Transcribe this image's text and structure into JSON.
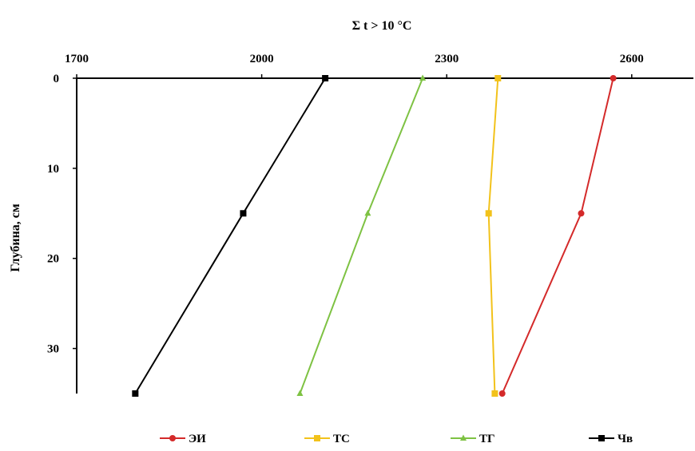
{
  "chart_data": {
    "type": "line",
    "title": "Σ t > 10 °C",
    "xlabel": "Σ t > 10 °C",
    "ylabel": "Глубина, см",
    "x_axis_position": "top",
    "y_axis_inverted": true,
    "xlim": [
      1700,
      2700
    ],
    "ylim": [
      0,
      35
    ],
    "x_ticks": [
      1700,
      2000,
      2300,
      2600
    ],
    "y_ticks": [
      0,
      10,
      20,
      30
    ],
    "grid": false,
    "legend_position": "bottom",
    "depths": [
      0,
      15,
      35
    ],
    "series": [
      {
        "name": "ЭИ",
        "color": "#d42a2a",
        "marker": "circle",
        "points": [
          [
            2570,
            0
          ],
          [
            2518,
            15
          ],
          [
            2390,
            35
          ]
        ]
      },
      {
        "name": "ТС",
        "color": "#f2c21b",
        "marker": "square",
        "points": [
          [
            2383,
            0
          ],
          [
            2368,
            15
          ],
          [
            2378,
            35
          ]
        ]
      },
      {
        "name": "ТГ",
        "color": "#7ec243",
        "marker": "triangle",
        "points": [
          [
            2261,
            0
          ],
          [
            2172,
            15
          ],
          [
            2062,
            35
          ]
        ]
      },
      {
        "name": "Чв",
        "color": "#000000",
        "marker": "square",
        "points": [
          [
            2103,
            0
          ],
          [
            1970,
            15
          ],
          [
            1795,
            35
          ]
        ]
      }
    ]
  }
}
